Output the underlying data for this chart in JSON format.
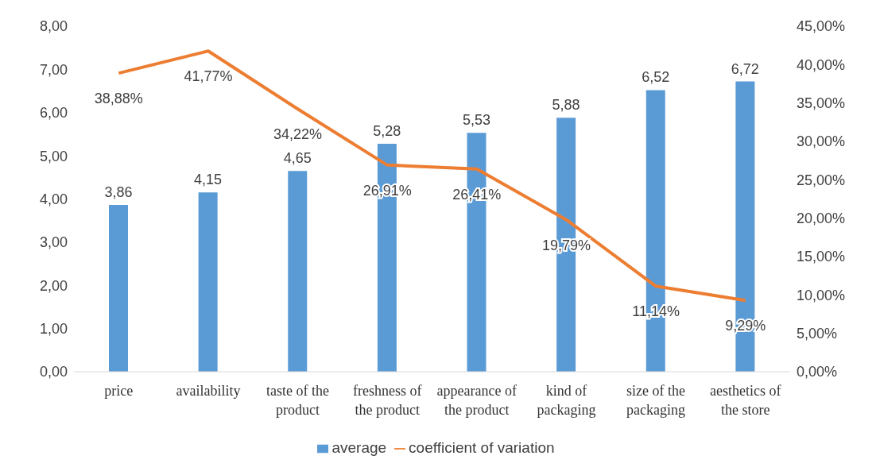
{
  "chart_data": {
    "type": "bar",
    "categories": [
      "price",
      "availability",
      "taste of the product",
      "freshness of the product",
      "appearance of the product",
      "kind of packaging",
      "size of the packaging",
      "aesthetics of the store"
    ],
    "series": [
      {
        "name": "average",
        "color": "#5b9bd5",
        "values": [
          3.86,
          4.15,
          4.65,
          5.28,
          5.53,
          5.88,
          6.52,
          6.72
        ],
        "value_labels": [
          "3,86",
          "4,15",
          "4,65",
          "5,28",
          "5,53",
          "5,88",
          "6,52",
          "6,72"
        ]
      },
      {
        "name": "coefficient of variation",
        "type": "line",
        "axis": "y2",
        "color": "#ed7d31",
        "values": [
          38.88,
          41.77,
          34.22,
          26.91,
          26.41,
          19.79,
          11.14,
          9.29
        ],
        "value_labels": [
          "38,88%",
          "41,77%",
          "34,22%",
          "26,91%",
          "26,41%",
          "19,79%",
          "11,14%",
          "9,29%"
        ]
      }
    ],
    "ylim": [
      0,
      8
    ],
    "yticks": [
      {
        "value": 0,
        "label": "0,00"
      },
      {
        "value": 1,
        "label": "1,00"
      },
      {
        "value": 2,
        "label": "2,00"
      },
      {
        "value": 3,
        "label": "3,00"
      },
      {
        "value": 4,
        "label": "4,00"
      },
      {
        "value": 5,
        "label": "5,00"
      },
      {
        "value": 6,
        "label": "6,00"
      },
      {
        "value": 7,
        "label": "7,00"
      },
      {
        "value": 8,
        "label": "8,00"
      }
    ],
    "y2lim": [
      0,
      45
    ],
    "y2ticks": [
      {
        "value": 0,
        "label": "0,00%"
      },
      {
        "value": 5,
        "label": "5,00%"
      },
      {
        "value": 10,
        "label": "10,00%"
      },
      {
        "value": 15,
        "label": "15,00%"
      },
      {
        "value": 20,
        "label": "20,00%"
      },
      {
        "value": 25,
        "label": "25,00%"
      },
      {
        "value": 30,
        "label": "30,00%"
      },
      {
        "value": 35,
        "label": "35,00%"
      },
      {
        "value": 40,
        "label": "40,00%"
      },
      {
        "value": 45,
        "label": "45,00%"
      }
    ],
    "legend": "bottom",
    "marker": "none",
    "line_style": "solid"
  }
}
